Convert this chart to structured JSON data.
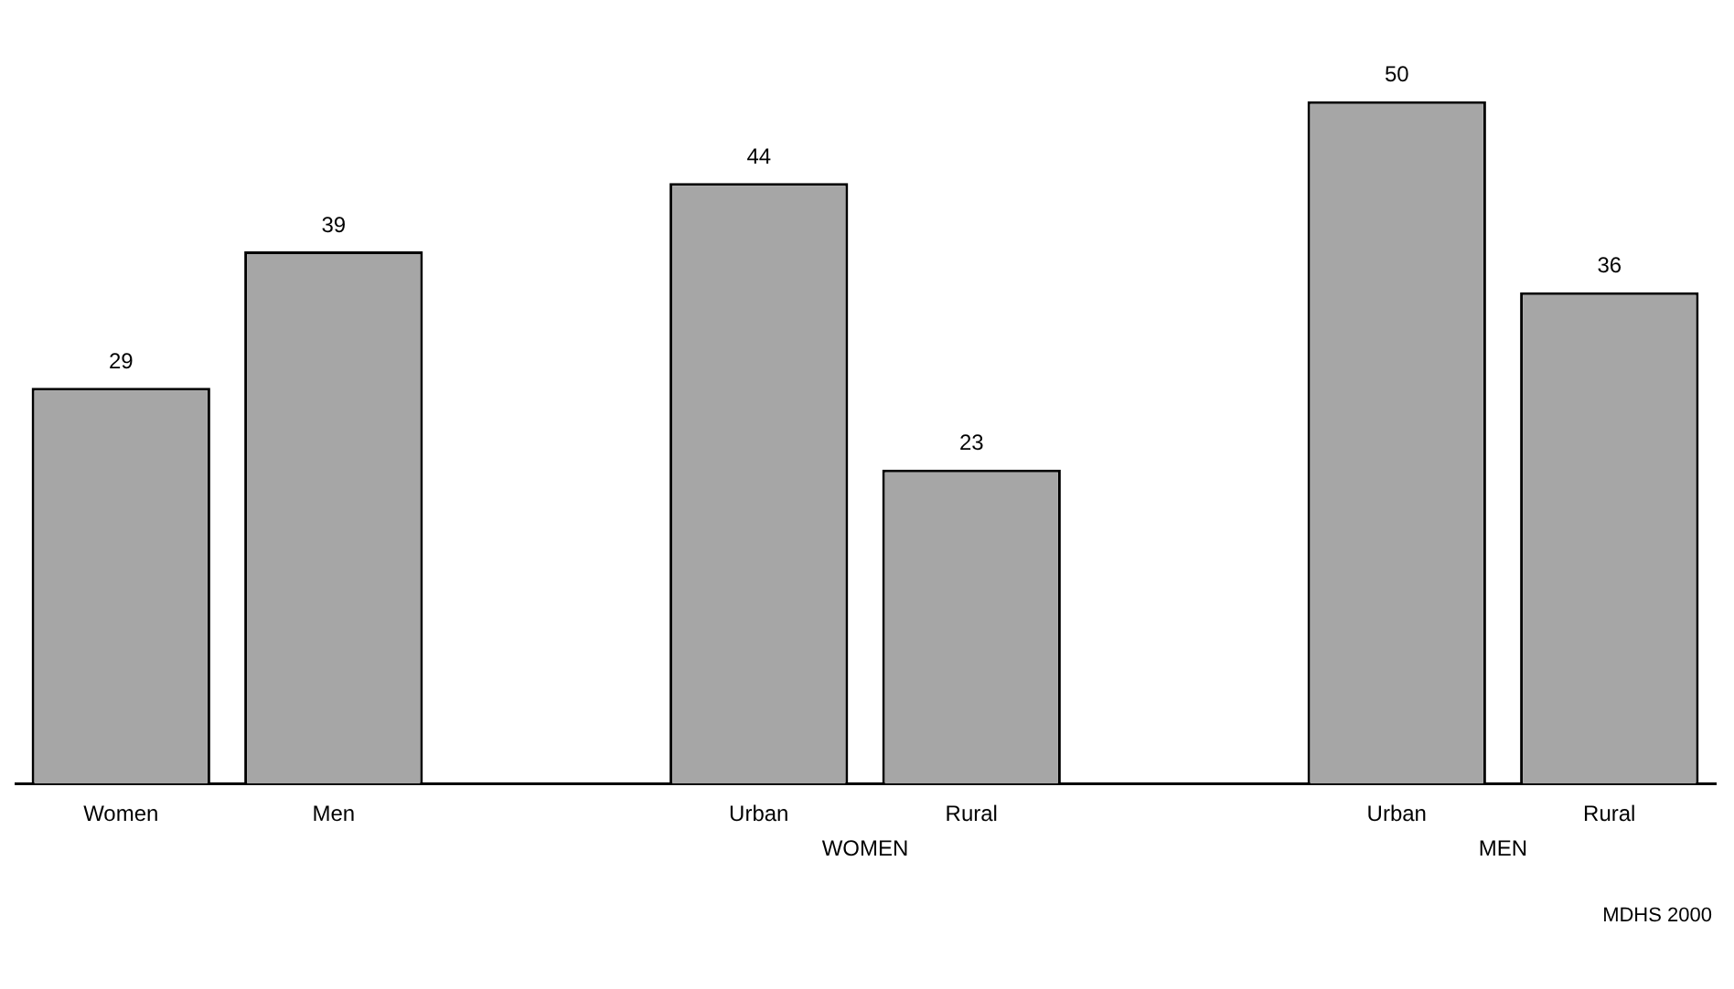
{
  "chart_data": {
    "type": "bar",
    "categories": [
      "Women",
      "Men",
      null,
      "Urban",
      "Rural",
      null,
      "Urban",
      "Rural"
    ],
    "values": [
      29,
      39,
      null,
      44,
      23,
      null,
      50,
      36
    ],
    "color": "#a6a6a6",
    "data_labels": true,
    "grid": false,
    "legend": false,
    "tick_labels": "x",
    "annotations": [
      "WOMEN",
      "MEN",
      "MDHS 2000"
    ]
  }
}
